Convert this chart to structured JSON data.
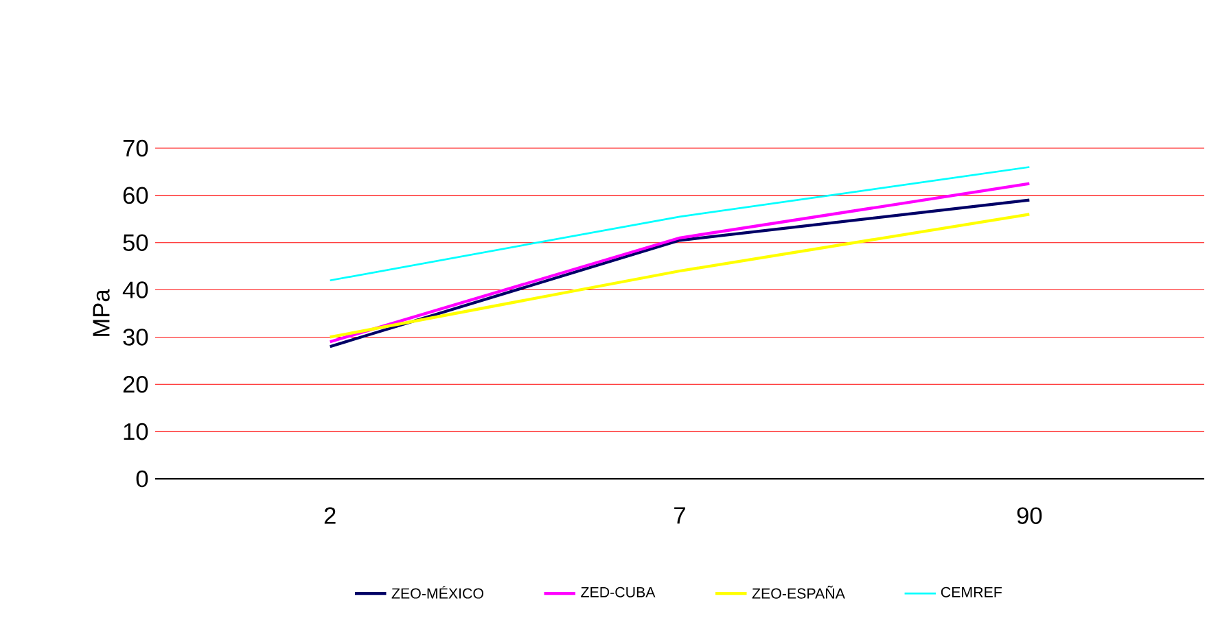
{
  "chart_data": {
    "type": "line",
    "ylabel": "MPa",
    "categories": [
      "2",
      "7",
      "90"
    ],
    "series": [
      {
        "name": "ZEO-MÉXICO",
        "color": "#000066",
        "values": [
          28,
          50.5,
          59
        ]
      },
      {
        "name": "ZED-CUBA",
        "color": "#ff00ff",
        "values": [
          29,
          51,
          62.5
        ]
      },
      {
        "name": "ZEO-ESPAÑA",
        "color": "#ffff00",
        "values": [
          30,
          44,
          56
        ]
      },
      {
        "name": "CEMREF",
        "color": "#00ffff",
        "values": [
          42,
          55.5,
          66
        ]
      }
    ],
    "ylim": [
      0,
      70
    ],
    "yticks": [
      0,
      10,
      20,
      30,
      40,
      50,
      60,
      70
    ],
    "grid": "y",
    "legend": "bottom",
    "marker": "none"
  }
}
